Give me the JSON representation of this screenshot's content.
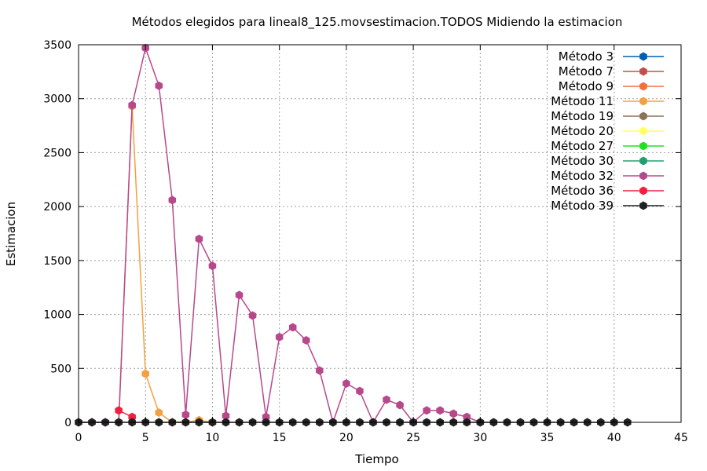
{
  "chart_data": {
    "type": "line",
    "title": "Métodos elegidos para lineal8_125.movsestimacion.TODOS Midiendo la estimacion",
    "xlabel": "Tiempo",
    "ylabel": "Estimacion",
    "xlim": [
      0,
      45
    ],
    "ylim": [
      0,
      3500
    ],
    "xticks": [
      0,
      5,
      10,
      15,
      20,
      25,
      30,
      35,
      40,
      45
    ],
    "yticks": [
      0,
      500,
      1000,
      1500,
      2000,
      2500,
      3000,
      3500
    ],
    "grid": true,
    "legend_position": "top-right",
    "series": [
      {
        "name": "Método 3",
        "color": "#0060ad",
        "points": []
      },
      {
        "name": "Método 7",
        "color": "#c0504d",
        "points": []
      },
      {
        "name": "Método 9",
        "color": "#f07040",
        "points": []
      },
      {
        "name": "Método 11",
        "color": "#f5a040",
        "points": [
          [
            3,
            0
          ],
          [
            4,
            2930
          ],
          [
            5,
            450
          ],
          [
            6,
            90
          ],
          [
            7,
            0
          ],
          [
            8,
            0
          ],
          [
            9,
            20
          ],
          [
            10,
            0
          ]
        ]
      },
      {
        "name": "Método 19",
        "color": "#8b7355",
        "points": []
      },
      {
        "name": "Método 20",
        "color": "#ffff60",
        "points": []
      },
      {
        "name": "Método 27",
        "color": "#20e020",
        "points": []
      },
      {
        "name": "Método 30",
        "color": "#20a070",
        "points": []
      },
      {
        "name": "Método 32",
        "color": "#b8488c",
        "points": [
          [
            0,
            0
          ],
          [
            1,
            0
          ],
          [
            2,
            0
          ],
          [
            3,
            0
          ],
          [
            4,
            2940
          ],
          [
            5,
            3470
          ],
          [
            6,
            3120
          ],
          [
            7,
            2060
          ],
          [
            8,
            70
          ],
          [
            9,
            1700
          ],
          [
            10,
            1450
          ],
          [
            11,
            60
          ],
          [
            12,
            1180
          ],
          [
            13,
            990
          ],
          [
            14,
            50
          ],
          [
            15,
            790
          ],
          [
            16,
            880
          ],
          [
            17,
            760
          ],
          [
            18,
            480
          ],
          [
            19,
            0
          ],
          [
            20,
            360
          ],
          [
            21,
            290
          ],
          [
            22,
            0
          ],
          [
            23,
            210
          ],
          [
            24,
            160
          ],
          [
            25,
            0
          ],
          [
            26,
            110
          ],
          [
            27,
            110
          ],
          [
            28,
            80
          ],
          [
            29,
            50
          ],
          [
            30,
            0
          ]
        ]
      },
      {
        "name": "Método 36",
        "color": "#f02040",
        "points": [
          [
            3,
            110
          ],
          [
            4,
            50
          ]
        ]
      },
      {
        "name": "Método 39",
        "color": "#202020",
        "points": [
          [
            0,
            0
          ],
          [
            1,
            0
          ],
          [
            2,
            0
          ],
          [
            3,
            0
          ],
          [
            4,
            0
          ],
          [
            5,
            0
          ],
          [
            6,
            0
          ],
          [
            7,
            0
          ],
          [
            8,
            0
          ],
          [
            9,
            0
          ],
          [
            10,
            0
          ],
          [
            11,
            0
          ],
          [
            12,
            0
          ],
          [
            13,
            0
          ],
          [
            14,
            0
          ],
          [
            15,
            0
          ],
          [
            16,
            0
          ],
          [
            17,
            0
          ],
          [
            18,
            0
          ],
          [
            19,
            0
          ],
          [
            20,
            0
          ],
          [
            21,
            0
          ],
          [
            22,
            0
          ],
          [
            23,
            0
          ],
          [
            24,
            0
          ],
          [
            25,
            0
          ],
          [
            26,
            0
          ],
          [
            27,
            0
          ],
          [
            28,
            0
          ],
          [
            29,
            0
          ],
          [
            30,
            0
          ],
          [
            31,
            0
          ],
          [
            32,
            0
          ],
          [
            33,
            0
          ],
          [
            34,
            0
          ],
          [
            35,
            0
          ],
          [
            36,
            0
          ],
          [
            37,
            0
          ],
          [
            38,
            0
          ],
          [
            39,
            0
          ],
          [
            40,
            0
          ],
          [
            41,
            0
          ]
        ]
      }
    ]
  }
}
